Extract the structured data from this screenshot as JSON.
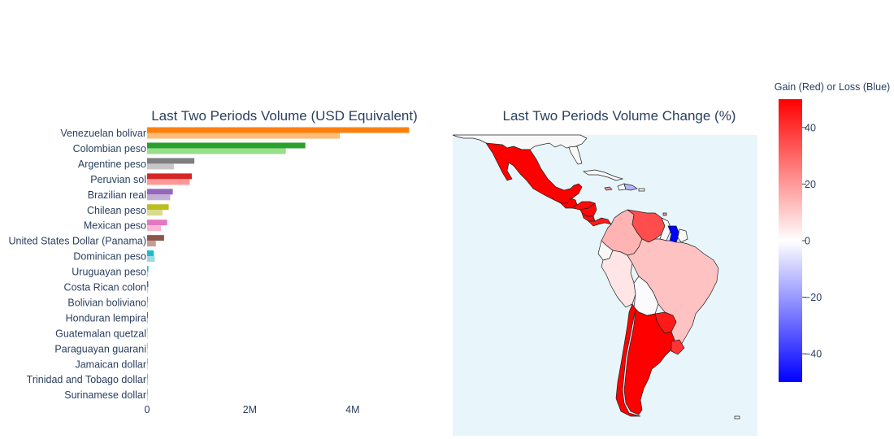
{
  "colors": {
    "map_ocean": "#e8f6fb",
    "land_other": "#f8f8f8",
    "coast": "#222222",
    "colorscale_pos": "#ff0000",
    "colorscale_mid": "#ffffff",
    "colorscale_neg": "#0000ff"
  },
  "chart_data": [
    {
      "type": "bar",
      "orientation": "horizontal",
      "title": "Last Two Periods Volume (USD Equivalent)",
      "categories": [
        "Venezuelan bolivar",
        "Colombian peso",
        "Argentine peso",
        "Peruvian sol",
        "Brazilian real",
        "Chilean peso",
        "Mexican peso",
        "United States Dollar (Panama)",
        "Dominican peso",
        "Uruguayan peso",
        "Costa Rican colon",
        "Bolivian boliviano",
        "Honduran lempira",
        "Guatemalan quetzal",
        "Paraguayan guarani",
        "Jamaican dollar",
        "Trinidad and Tobago dollar",
        "Surinamese dollar"
      ],
      "series": [
        {
          "values": [
            5100000,
            3080000,
            920000,
            870000,
            500000,
            420000,
            390000,
            330000,
            130000,
            25000,
            22000,
            18000,
            15000,
            8000,
            6000,
            4000,
            3000,
            2000
          ]
        },
        {
          "values": [
            3750000,
            2700000,
            520000,
            830000,
            450000,
            300000,
            270000,
            170000,
            150000,
            20000,
            18000,
            15000,
            12000,
            6000,
            4000,
            3000,
            2000,
            1000
          ]
        }
      ],
      "bar_colors": [
        [
          "#ff7f0e",
          "#ffbb78"
        ],
        [
          "#2ca02c",
          "#98df8a"
        ],
        [
          "#7f7f7f",
          "#c7c7c7"
        ],
        [
          "#d62728",
          "#ff9896"
        ],
        [
          "#9467bd",
          "#c5b0d5"
        ],
        [
          "#bcbd22",
          "#dbdb8d"
        ],
        [
          "#e377c2",
          "#f7b6d2"
        ],
        [
          "#8c564b",
          "#c49c94"
        ],
        [
          "#17becf",
          "#9edae5"
        ],
        [
          "#17becf",
          "#9edae5"
        ],
        [
          "#1f77b4",
          "#aec7e8"
        ],
        [
          "#ff7f0e",
          "#ffbb78"
        ],
        [
          "#d62728",
          "#ff9896"
        ],
        [
          "#bcbd22",
          "#dbdb8d"
        ],
        [
          "#e377c2",
          "#f7b6d2"
        ],
        [
          "#7f7f7f",
          "#c7c7c7"
        ],
        [
          "#8c564b",
          "#c49c94"
        ],
        [
          "#9467bd",
          "#c5b0d5"
        ]
      ],
      "xlim": [
        0,
        5300000
      ],
      "xticks": [
        0,
        2000000,
        4000000
      ],
      "xtick_labels": [
        "0",
        "2M",
        "4M"
      ]
    },
    {
      "type": "choropleth",
      "title": "Last Two Periods Volume Change (%)",
      "colorbar_title": "Gain (Red) or Loss (Blue)",
      "range": [
        -50,
        50
      ],
      "ticks": [
        40,
        20,
        0,
        -20,
        -40
      ],
      "tick_labels": [
        "40",
        "20",
        "0",
        "−20",
        "−40"
      ],
      "regions": [
        {
          "name": "Mexico",
          "value": 50
        },
        {
          "name": "Guatemala",
          "value": 50
        },
        {
          "name": "Honduras",
          "value": 48
        },
        {
          "name": "Nicaragua",
          "value": 48
        },
        {
          "name": "Costa Rica",
          "value": 48
        },
        {
          "name": "Panama",
          "value": 45
        },
        {
          "name": "Dominican Republic",
          "value": -15
        },
        {
          "name": "Jamaica",
          "value": 20
        },
        {
          "name": "Trinidad and Tobago",
          "value": 20
        },
        {
          "name": "Colombia",
          "value": 15
        },
        {
          "name": "Venezuela",
          "value": 35
        },
        {
          "name": "Suriname",
          "value": -50
        },
        {
          "name": "Brazil",
          "value": 12
        },
        {
          "name": "Peru",
          "value": 5
        },
        {
          "name": "Bolivia",
          "value": -1
        },
        {
          "name": "Chile",
          "value": 50
        },
        {
          "name": "Argentina",
          "value": 50
        },
        {
          "name": "Paraguay",
          "value": 45
        },
        {
          "name": "Uruguay",
          "value": 40
        }
      ]
    }
  ]
}
